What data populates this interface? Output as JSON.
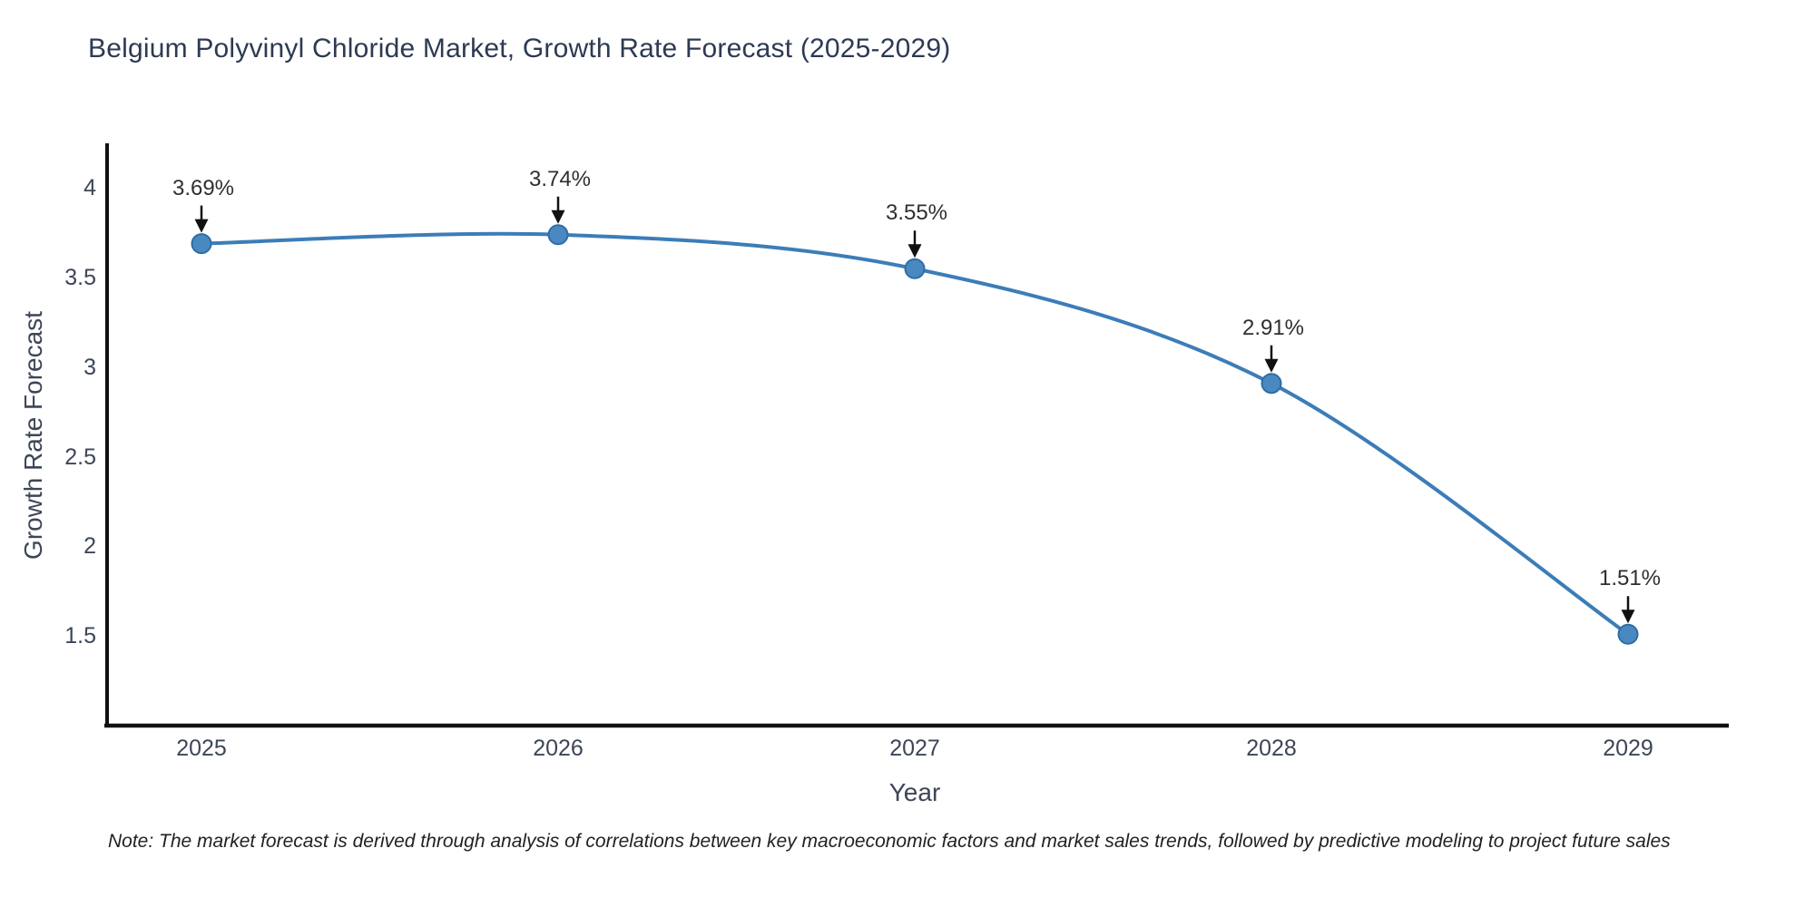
{
  "chart": {
    "note": "Note: The market forecast is derived through analysis of correlations between key macroeconomic factors and market sales trends, followed by predictive modeling to project future sales",
    "colors": {
      "line": "#3c7db8",
      "marker_fill": "#4a88c0",
      "marker_edge": "#2e6da6",
      "axis_spine": "#111111",
      "arrow": "#111111",
      "title_text": "#2d3a53",
      "tick_text": "#3d4657"
    }
  },
  "chart_data": {
    "type": "line",
    "title": "Belgium Polyvinyl Chloride Market, Growth Rate Forecast (2025-2029)",
    "xlabel": "Year",
    "ylabel": "Growth Rate Forecast",
    "x": [
      2025,
      2026,
      2027,
      2028,
      2029
    ],
    "values": [
      3.69,
      3.74,
      3.55,
      2.91,
      1.51
    ],
    "point_labels": [
      "3.69%",
      "3.74%",
      "3.55%",
      "2.91%",
      "1.51%"
    ],
    "yticks": [
      1.5,
      2,
      2.5,
      3,
      3.5,
      4
    ],
    "ylim": [
      1.0,
      4.25
    ],
    "grid": false,
    "legend": false,
    "marker_style": "circle",
    "annotation_style": "value-with-down-arrow"
  }
}
